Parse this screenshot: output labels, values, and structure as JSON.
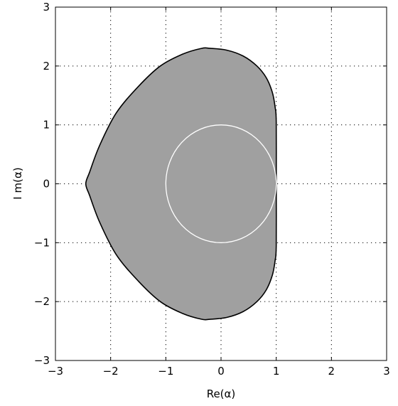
{
  "chart_data": {
    "type": "area",
    "xlabel": "Re(α)",
    "ylabel": "I m(α)",
    "xlim": [
      -3,
      3
    ],
    "ylim": [
      -3,
      3
    ],
    "xticks": [
      -3,
      -2,
      -1,
      0,
      1,
      2,
      3
    ],
    "yticks": [
      -3,
      -2,
      -1,
      0,
      1,
      2,
      3
    ],
    "xtick_labels": [
      "−3",
      "−2",
      "−1",
      "0",
      "1",
      "2",
      "3"
    ],
    "ytick_labels": [
      "−3",
      "−2",
      "−1",
      "0",
      "1",
      "2",
      "3"
    ],
    "grid": true,
    "grid_style": "dotted",
    "series": [
      {
        "kind": "filled-region-boundary",
        "fill": "#a0a0a0",
        "stroke": "#000000",
        "x": [
          1.0,
          1.0,
          0.98,
          0.93,
          0.82,
          0.65,
          0.4,
          0.1,
          -0.2,
          -0.35,
          -0.7,
          -1.1,
          -1.5,
          -1.9,
          -2.2,
          -2.38,
          -2.45,
          -2.38,
          -2.2,
          -1.9,
          -1.5,
          -1.1,
          -0.7,
          -0.35,
          -0.2,
          0.1,
          0.4,
          0.65,
          0.82,
          0.93,
          0.98,
          1.0,
          1.0
        ],
        "y": [
          0.0,
          1.05,
          1.3,
          1.55,
          1.8,
          2.0,
          2.17,
          2.27,
          2.3,
          2.3,
          2.2,
          2.0,
          1.65,
          1.2,
          0.65,
          0.2,
          0.0,
          -0.2,
          -0.65,
          -1.2,
          -1.65,
          -2.0,
          -2.2,
          -2.3,
          -2.3,
          -2.27,
          -2.17,
          -2.0,
          -1.8,
          -1.55,
          -1.3,
          -1.05,
          0.0
        ]
      },
      {
        "kind": "circle",
        "center": [
          0,
          0
        ],
        "radius": 1,
        "stroke": "#ffffff"
      }
    ]
  }
}
